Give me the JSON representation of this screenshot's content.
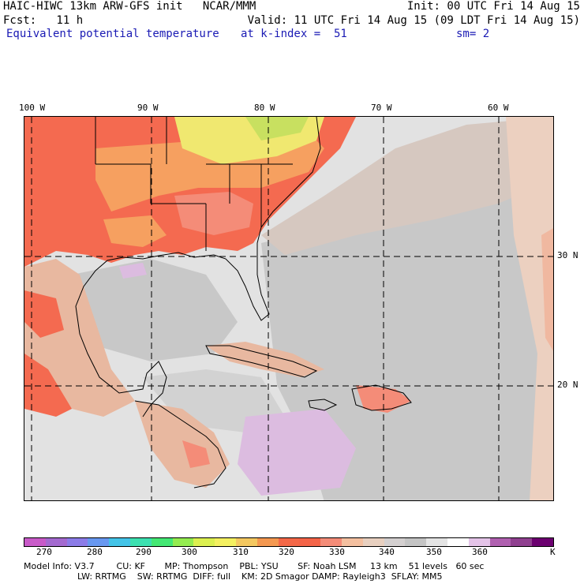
{
  "header": {
    "line1_left": "HAIC-HIWC 13km ARW-GFS init   NCAR/MMM",
    "line1_right": "Init: 00 UTC Fri 14 Aug 15",
    "line2_left": "Fcst:   11 h",
    "line2_right": "Valid: 11 UTC Fri 14 Aug 15 (09 LDT Fri 14 Aug 15)",
    "field": "Equivalent potential temperature",
    "level": "at k-index =  51",
    "smooth": "sm= 2"
  },
  "map": {
    "lon_labels": [
      "100 W",
      "90 W",
      "80 W",
      "70 W",
      "60 W"
    ],
    "lat_labels": [
      "30 N",
      "20 N"
    ]
  },
  "colorbar": {
    "colors": [
      "#c85ac8",
      "#a46ad0",
      "#8c7ce8",
      "#6898f0",
      "#44c4e8",
      "#3ce0b0",
      "#44e874",
      "#94ec50",
      "#dcf050",
      "#f4f060",
      "#f4c860",
      "#f49850",
      "#f46848",
      "#f46448",
      "#f48c78",
      "#f4c0a0",
      "#e8d0c0",
      "#d4d0d0",
      "#c4c4c4",
      "#e4e4e4",
      "#ffffff",
      "#e4c4e8",
      "#b060b0",
      "#904090",
      "#6c0070"
    ],
    "tick_labels": [
      "270",
      "280",
      "290",
      "300",
      "310",
      "320",
      "330",
      "340",
      "350",
      "360"
    ],
    "unit": "K"
  },
  "model_info": {
    "line1": "Model Info: V3.7        CU: KF       MP: Thompson    PBL: YSU       SF: Noah LSM     13 km    51 levels   60 sec",
    "line2": "LW: RRTMG    SW: RRTMG  DIFF: full    KM: 2D Smagor DAMP: Rayleigh3  SFLAY: MM5"
  }
}
